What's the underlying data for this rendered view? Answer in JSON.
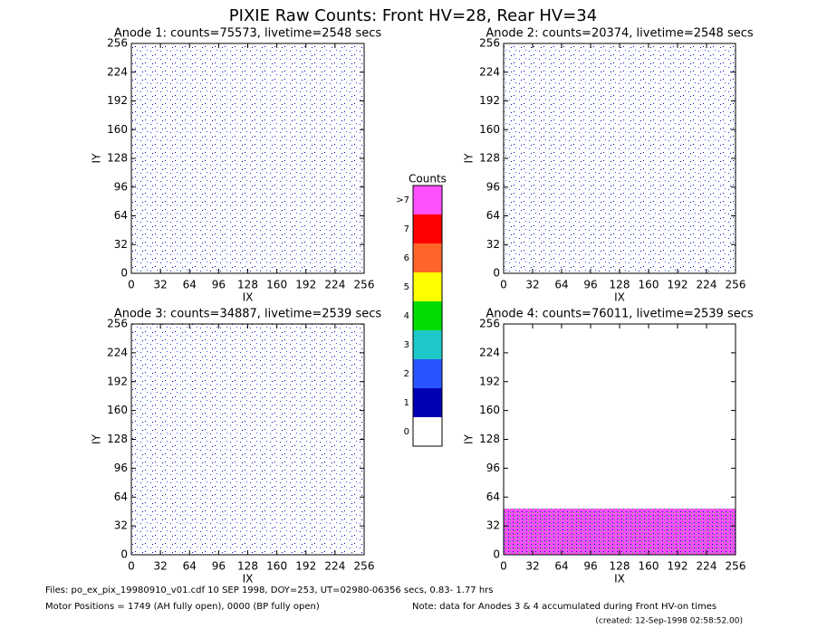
{
  "title": "PIXIE Raw Counts:  Front HV=28, Rear HV=34",
  "chart_data": [
    {
      "type": "image",
      "title": "Anode 1: counts=75573, livetime=2548 secs",
      "x_label": "IX",
      "y_label": "IY",
      "xlim": [
        0,
        256
      ],
      "ylim": [
        0,
        256
      ],
      "xticks": [
        0,
        32,
        64,
        96,
        128,
        160,
        192,
        224,
        256
      ],
      "yticks": [
        0,
        32,
        64,
        96,
        128,
        160,
        192,
        224,
        256
      ]
    },
    {
      "type": "image",
      "title": "Anode 2: counts=20374, livetime=2548 secs",
      "x_label": "IX",
      "y_label": "IY",
      "xlim": [
        0,
        256
      ],
      "ylim": [
        0,
        256
      ],
      "xticks": [
        0,
        32,
        64,
        96,
        128,
        160,
        192,
        224,
        256
      ],
      "yticks": [
        0,
        32,
        64,
        96,
        128,
        160,
        192,
        224,
        256
      ]
    },
    {
      "type": "image",
      "title": "Anode 3: counts=34887, livetime=2539 secs",
      "x_label": "IX",
      "y_label": "IY",
      "xlim": [
        0,
        256
      ],
      "ylim": [
        0,
        256
      ],
      "xticks": [
        0,
        32,
        64,
        96,
        128,
        160,
        192,
        224,
        256
      ],
      "yticks": [
        0,
        32,
        64,
        96,
        128,
        160,
        192,
        224,
        256
      ]
    },
    {
      "type": "image",
      "title": "Anode 4: counts=76011, livetime=2539 secs",
      "x_label": "IX",
      "y_label": "IY",
      "xlim": [
        0,
        256
      ],
      "ylim": [
        0,
        256
      ],
      "xticks": [
        0,
        32,
        64,
        96,
        128,
        160,
        192,
        224,
        256
      ],
      "yticks": [
        0,
        32,
        64,
        96,
        128,
        160,
        192,
        224,
        256
      ]
    }
  ],
  "colorbar": {
    "title": "Counts",
    "levels": [
      "0",
      "1",
      "2",
      "3",
      "4",
      "5",
      "6",
      "7",
      ">7"
    ],
    "colors": [
      "#ffffff",
      "#0000b4",
      "#2855ff",
      "#1ec8c8",
      "#00dc00",
      "#ffff00",
      "#ff6428",
      "#ff0000",
      "#ff50ff"
    ]
  },
  "footer": {
    "files": "Files: po_ex_pix_19980910_v01.cdf    10 SEP 1998, DOY=253, UT=02980-06356 secs,  0.83- 1.77 hrs",
    "motor": "Motor Positions = 1749 (AH fully open), 0000 (BP fully open)",
    "note": "Note: data for Anodes 3 & 4 accumulated during Front HV-on times",
    "created": "(created: 12-Sep-1998 02:58:52.00)"
  }
}
